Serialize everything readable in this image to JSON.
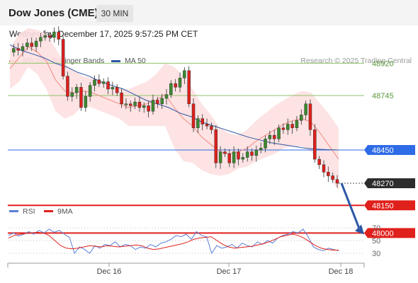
{
  "header": {
    "title": "Dow Jones (CME)",
    "interval": "30 MIN"
  },
  "datetime": "Wednesday, December 17, 2025 9:57:25 PM CET",
  "legend": [
    {
      "label": "MA 20 + Bollinger Bands",
      "color": "#f28b82"
    },
    {
      "label": "MA 50",
      "color": "#2c57a6"
    }
  ],
  "copyright": "Research © 2025 Trading Central",
  "rsi_legend": [
    {
      "label": "RSI",
      "color": "#5b7fd6"
    },
    {
      "label": "9MA",
      "color": "#e0201b"
    }
  ],
  "colors": {
    "resistance": "#8fc36a",
    "pivot": "#2e6be6",
    "support": "#e0201b",
    "last": "#2d2d2d",
    "bull": "#3a8a2e",
    "bear": "#e0201b",
    "arrow": "#2c57a6"
  },
  "chart_data": [
    {
      "type": "candlestick",
      "title": "",
      "ylim": [
        47950,
        49150
      ],
      "x_tick_labels": [
        "Dec 16",
        "Dec 17",
        "Dec 18"
      ],
      "levels": [
        {
          "value": 48920,
          "label": "48920",
          "kind": "resistance"
        },
        {
          "value": 48745,
          "label": "48745",
          "kind": "resistance"
        },
        {
          "value": 48450,
          "label": "48450",
          "kind": "pivot"
        },
        {
          "value": 48270,
          "label": "48270",
          "kind": "last"
        },
        {
          "value": 48150,
          "label": "48150",
          "kind": "support"
        },
        {
          "value": 48000,
          "label": "48000",
          "kind": "support"
        }
      ],
      "close_path": [
        48980,
        49000,
        48990,
        49010,
        49030,
        49010,
        49040,
        49060,
        49070,
        49060,
        49090,
        49050,
        48850,
        48740,
        48760,
        48790,
        48680,
        48740,
        48800,
        48830,
        48810,
        48820,
        48780,
        48790,
        48760,
        48700,
        48700,
        48690,
        48710,
        48680,
        48690,
        48660,
        48720,
        48700,
        48730,
        48750,
        48810,
        48790,
        48840,
        48880,
        48700,
        48570,
        48620,
        48590,
        48580,
        48560,
        48380,
        48440,
        48430,
        48380,
        48440,
        48400,
        48410,
        48440,
        48420,
        48450,
        48460,
        48510,
        48530,
        48510,
        48570,
        48560,
        48590,
        48570,
        48610,
        48640,
        48700,
        48560,
        48400,
        48370,
        48330,
        48310,
        48290,
        48270
      ],
      "ma50": [
        49020,
        48990,
        48970,
        48950,
        48920,
        48900,
        48870,
        48850,
        48820,
        48800,
        48780,
        48750,
        48720,
        48700,
        48680,
        48650,
        48630,
        48600,
        48580,
        48560,
        48540,
        48520,
        48505,
        48490,
        48480,
        48470,
        48460,
        48455,
        48452,
        48450
      ],
      "ma20": [
        48890,
        48950,
        49010,
        48980,
        48930,
        48830,
        48770,
        48760,
        48770,
        48760,
        48740,
        48720,
        48700,
        48680,
        48690,
        48700,
        48720,
        48750,
        48680,
        48620,
        48580,
        48520,
        48480,
        48440,
        48430,
        48440,
        48460,
        48500,
        48530,
        48560,
        48590,
        48610,
        48620,
        48600,
        48540,
        48470,
        48400
      ],
      "bb_upper": [
        49000,
        49080,
        49110,
        49100,
        49080,
        49000,
        48920,
        48880,
        48850,
        48840,
        48820,
        48800,
        48780,
        48780,
        48800,
        48820,
        48860,
        48920,
        48900,
        48850,
        48780,
        48700,
        48640,
        48570,
        48540,
        48530,
        48560,
        48610,
        48650,
        48690,
        48720,
        48750,
        48770,
        48760,
        48700,
        48640,
        48570
      ],
      "bb_lower": [
        48780,
        48820,
        48900,
        48860,
        48780,
        48660,
        48620,
        48640,
        48690,
        48680,
        48660,
        48640,
        48620,
        48580,
        48580,
        48580,
        48580,
        48580,
        48460,
        48390,
        48380,
        48340,
        48320,
        48310,
        48320,
        48350,
        48360,
        48390,
        48410,
        48430,
        48460,
        48470,
        48470,
        48440,
        48380,
        48300,
        48230
      ],
      "forecast": {
        "from": 48270,
        "to": 48000
      }
    },
    {
      "type": "line",
      "title": "RSI",
      "ylim": [
        20,
        80
      ],
      "y_ticks": [
        30,
        50,
        70
      ],
      "series": [
        {
          "name": "RSI",
          "values": [
            58,
            62,
            57,
            60,
            64,
            60,
            66,
            62,
            68,
            63,
            66,
            60,
            55,
            30,
            40,
            36,
            30,
            42,
            38,
            44,
            42,
            48,
            40,
            44,
            42,
            36,
            40,
            38,
            44,
            40,
            46,
            48,
            52,
            58,
            56,
            60,
            52,
            64,
            58,
            56,
            30,
            42,
            38,
            40,
            44,
            38,
            46,
            42,
            40,
            48,
            44,
            50,
            46,
            54,
            58,
            60,
            64,
            62,
            68,
            56,
            40,
            36,
            34,
            38,
            36,
            34
          ]
        },
        {
          "name": "9MA",
          "values": [
            54,
            58,
            60,
            61,
            62,
            63,
            62,
            58,
            50,
            42,
            38,
            37,
            38,
            40,
            42,
            41,
            40,
            42,
            41,
            40,
            41,
            42,
            43,
            42,
            38,
            36,
            37,
            39,
            41,
            43,
            45,
            48,
            52,
            54,
            55,
            56,
            50,
            44,
            40,
            38,
            39,
            40,
            41,
            43,
            45,
            48,
            52,
            56,
            58,
            60,
            58,
            54,
            48,
            42,
            38,
            36,
            35,
            35
          ]
        }
      ]
    }
  ]
}
